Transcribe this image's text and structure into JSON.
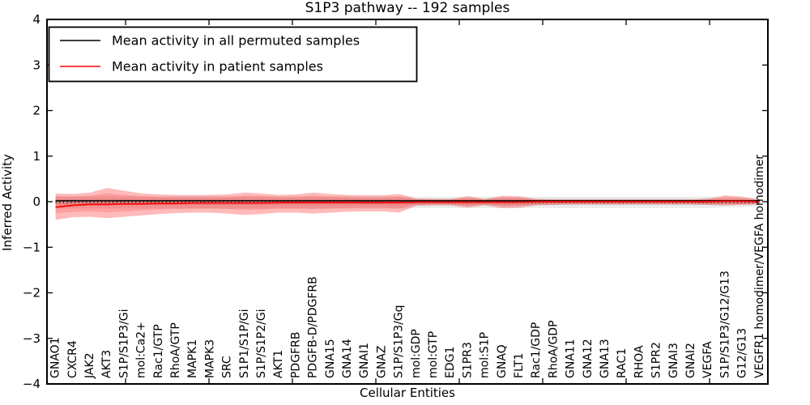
{
  "chart_data": {
    "type": "line",
    "title": "S1P3 pathway -- 192 samples",
    "xlabel": "Cellular Entities",
    "ylabel": "Inferred Activity",
    "ylim": [
      -4,
      4
    ],
    "yticks": [
      -4,
      -3,
      -2,
      -1,
      0,
      1,
      2,
      3,
      4
    ],
    "ytick_labels": [
      "−4",
      "−3",
      "−2",
      "−1",
      "0",
      "1",
      "2",
      "3",
      "4"
    ],
    "grid": "off",
    "legend": {
      "position": "upper left"
    },
    "categories": [
      "GNAO1",
      "CXCR4",
      "JAK2",
      "AKT3",
      "S1P/S1P3/Gi",
      "mol:Ca2+",
      "Rac1/GTP",
      "RhoA/GTP",
      "MAPK1",
      "MAPK3",
      "SRC",
      "S1P1/S1P/Gi",
      "S1P/S1P2/Gi",
      "AKT1",
      "PDGFRB",
      "PDGFB-D/PDGFRB",
      "GNA15",
      "GNA14",
      "GNAI1",
      "GNAZ",
      "S1P/S1P3/Gq",
      "mol:GDP",
      "mol:GTP",
      "EDG1",
      "S1PR3",
      "mol:S1P",
      "GNAQ",
      "FLT1",
      "Rac1/GDP",
      "RhoA/GDP",
      "GNA11",
      "GNA12",
      "GNA13",
      "RAC1",
      "RHOA",
      "S1PR2",
      "GNAI3",
      "GNAI2",
      "VEGFA",
      "S1P/S1P3/G12/G13",
      "G12/G13",
      "VEGFR1 homodimer/VEGFA homodimer"
    ],
    "series": [
      {
        "name": "Mean activity in all permuted samples",
        "color": "#000000",
        "values": [
          0.02,
          0.02,
          0.02,
          0.02,
          0.02,
          0.02,
          0.02,
          0.02,
          0.02,
          0.02,
          0.02,
          0.02,
          0.02,
          0.02,
          0.02,
          0.02,
          0.02,
          0.02,
          0.02,
          0.02,
          0.02,
          0.02,
          0.02,
          0.02,
          0.02,
          0.02,
          0.02,
          0.02,
          0.02,
          0.02,
          0.02,
          0.02,
          0.02,
          0.02,
          0.02,
          0.02,
          0.02,
          0.02,
          0.02,
          0.02,
          0.02,
          0.02
        ]
      },
      {
        "name": "Mean activity in patient samples",
        "color": "#ff0000",
        "values": [
          -0.12,
          -0.08,
          -0.06,
          -0.06,
          -0.05,
          -0.05,
          -0.04,
          -0.04,
          -0.03,
          -0.03,
          -0.03,
          -0.03,
          -0.03,
          -0.02,
          -0.02,
          -0.02,
          -0.02,
          -0.02,
          -0.02,
          -0.02,
          -0.02,
          -0.01,
          -0.01,
          -0.01,
          -0.01,
          -0.01,
          -0.01,
          -0.01,
          0,
          0,
          0,
          0,
          0,
          0,
          0,
          0,
          0,
          0,
          0,
          0.01,
          0.01,
          0
        ]
      }
    ],
    "bands": [
      {
        "name": "permuted-range-outer",
        "color": "rgba(0,0,0,0.08)",
        "top": [
          0.12,
          0.12,
          0.12,
          0.12,
          0.12,
          0.12,
          0.12,
          0.12,
          0.12,
          0.12,
          0.12,
          0.12,
          0.12,
          0.12,
          0.12,
          0.12,
          0.12,
          0.12,
          0.12,
          0.12,
          0.12,
          0.11,
          0.11,
          0.11,
          0.11,
          0.11,
          0.11,
          0.11,
          0.11,
          0.11,
          0.11,
          0.11,
          0.11,
          0.11,
          0.11,
          0.11,
          0.11,
          0.11,
          0.11,
          0.1,
          0.1,
          0.08
        ],
        "bottom": [
          -0.15,
          -0.15,
          -0.15,
          -0.15,
          -0.15,
          -0.15,
          -0.15,
          -0.15,
          -0.15,
          -0.15,
          -0.15,
          -0.15,
          -0.15,
          -0.15,
          -0.15,
          -0.15,
          -0.15,
          -0.15,
          -0.15,
          -0.15,
          -0.15,
          -0.14,
          -0.14,
          -0.14,
          -0.14,
          -0.14,
          -0.14,
          -0.14,
          -0.14,
          -0.14,
          -0.14,
          -0.14,
          -0.14,
          -0.14,
          -0.14,
          -0.14,
          -0.14,
          -0.14,
          -0.14,
          -0.12,
          -0.12,
          -0.1
        ]
      },
      {
        "name": "permuted-range-inner",
        "color": "rgba(0,0,0,0.10)",
        "top": [
          0.06,
          0.06,
          0.06,
          0.06,
          0.06,
          0.06,
          0.06,
          0.06,
          0.06,
          0.06,
          0.06,
          0.06,
          0.06,
          0.06,
          0.06,
          0.06,
          0.06,
          0.06,
          0.06,
          0.06,
          0.06,
          0.06,
          0.06,
          0.06,
          0.06,
          0.06,
          0.06,
          0.06,
          0.06,
          0.06,
          0.06,
          0.06,
          0.06,
          0.06,
          0.06,
          0.06,
          0.06,
          0.06,
          0.06,
          0.05,
          0.05,
          0.04
        ],
        "bottom": [
          -0.07,
          -0.07,
          -0.07,
          -0.07,
          -0.07,
          -0.07,
          -0.07,
          -0.07,
          -0.07,
          -0.07,
          -0.07,
          -0.07,
          -0.07,
          -0.07,
          -0.07,
          -0.07,
          -0.07,
          -0.07,
          -0.07,
          -0.07,
          -0.07,
          -0.07,
          -0.07,
          -0.07,
          -0.07,
          -0.07,
          -0.07,
          -0.07,
          -0.07,
          -0.07,
          -0.07,
          -0.07,
          -0.07,
          -0.07,
          -0.07,
          -0.07,
          -0.07,
          -0.07,
          -0.07,
          -0.06,
          -0.05,
          -0.05
        ]
      },
      {
        "name": "patient-range-outer",
        "color": "rgba(255,0,0,0.27)",
        "top": [
          0.18,
          0.17,
          0.2,
          0.3,
          0.24,
          0.18,
          0.16,
          0.15,
          0.15,
          0.15,
          0.16,
          0.2,
          0.18,
          0.15,
          0.16,
          0.2,
          0.17,
          0.15,
          0.14,
          0.14,
          0.17,
          0.07,
          0.06,
          0.06,
          0.12,
          0.06,
          0.13,
          0.12,
          0.06,
          0.05,
          0.05,
          0.05,
          0.05,
          0.05,
          0.05,
          0.05,
          0.05,
          0.05,
          0.07,
          0.14,
          0.11,
          0.05
        ],
        "bottom": [
          -0.4,
          -0.34,
          -0.33,
          -0.36,
          -0.33,
          -0.3,
          -0.27,
          -0.25,
          -0.24,
          -0.24,
          -0.26,
          -0.29,
          -0.27,
          -0.24,
          -0.24,
          -0.26,
          -0.24,
          -0.22,
          -0.21,
          -0.21,
          -0.24,
          -0.09,
          -0.08,
          -0.08,
          -0.13,
          -0.08,
          -0.14,
          -0.13,
          -0.08,
          -0.07,
          -0.06,
          -0.06,
          -0.06,
          -0.06,
          -0.06,
          -0.06,
          -0.06,
          -0.06,
          -0.07,
          -0.08,
          -0.07,
          -0.06
        ]
      },
      {
        "name": "patient-range-inner",
        "color": "rgba(255,0,0,0.15)",
        "top": [
          0.12,
          0.11,
          0.13,
          0.19,
          0.15,
          0.12,
          0.1,
          0.1,
          0.1,
          0.1,
          0.1,
          0.13,
          0.12,
          0.1,
          0.1,
          0.13,
          0.11,
          0.1,
          0.09,
          0.09,
          0.11,
          0.05,
          0.04,
          0.04,
          0.08,
          0.04,
          0.09,
          0.08,
          0.04,
          0.03,
          0.03,
          0.03,
          0.03,
          0.03,
          0.03,
          0.03,
          0.03,
          0.03,
          0.05,
          0.09,
          0.07,
          0.03
        ],
        "bottom": [
          -0.25,
          -0.22,
          -0.21,
          -0.23,
          -0.21,
          -0.19,
          -0.17,
          -0.16,
          -0.15,
          -0.15,
          -0.16,
          -0.18,
          -0.17,
          -0.15,
          -0.15,
          -0.16,
          -0.15,
          -0.14,
          -0.13,
          -0.13,
          -0.15,
          -0.06,
          -0.05,
          -0.05,
          -0.09,
          -0.05,
          -0.09,
          -0.09,
          -0.05,
          -0.04,
          -0.04,
          -0.04,
          -0.04,
          -0.04,
          -0.04,
          -0.04,
          -0.04,
          -0.04,
          -0.05,
          -0.05,
          -0.05,
          -0.04
        ]
      }
    ],
    "zero_line": 0
  }
}
